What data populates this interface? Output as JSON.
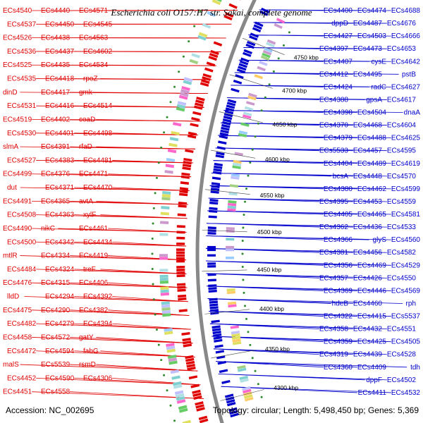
{
  "title": "Escherichia coli O157:H7 str. Sakai, complete genome",
  "accession": "Accession: NC_002695",
  "topology": "Topology: circular; Length: 5,498,450 bp; Genes: 5,369",
  "colors": {
    "forward": "#e00000",
    "reverse": "#0000cc",
    "backbone": "#888888",
    "tick": "#2e8b2e"
  },
  "kbp_ticks": [
    "4750 kbp",
    "4700 kbp",
    "4650 kbp",
    "4600 kbp",
    "4550 kbp",
    "4500 kbp",
    "4450 kbp",
    "4400 kbp",
    "4350 kbp",
    "4300 kbp"
  ],
  "forward_genes": [
    "ECs4540",
    "ECs4537",
    "ECs4526",
    "ECs4536",
    "ECs4525",
    "ECs4535",
    "dinD",
    "ECs4531",
    "ECs4519",
    "ECs4530",
    "slmA",
    "ECs4527",
    "ECs4499",
    "dut",
    "ECs4491",
    "ECs4508",
    "ECs4490",
    "ECs4500",
    "mtlR",
    "ECs4484",
    "ECs4476",
    "lldD",
    "ECs4475",
    "ECs4482",
    "ECs4458",
    "ECs4472",
    "malS",
    "ECs4452",
    "ECs4451",
    "ECs4440",
    "ECs4450",
    "ECs4438",
    "ECs4437",
    "ECs4435",
    "ECs4418",
    "ECs4417",
    "ECs4416",
    "ECs4402",
    "ECs4401",
    "ECs4391",
    "ECs4383",
    "ECs4376",
    "ECs4371",
    "ECs4365",
    "ECs4363",
    "nikC",
    "ECs4342",
    "ECs4334",
    "ECs4324",
    "ECs4315",
    "ECs4294",
    "ECs4290",
    "ECs4279",
    "ECs4572",
    "ECs4594",
    "ECs5539",
    "ECs4590",
    "ECs4558",
    "ECs4571",
    "ECs4545",
    "ECs4563",
    "ECs4602",
    "ECs4534",
    "rpoZ",
    "gmk",
    "ECs4514",
    "coaD",
    "ECs4498",
    "rfaD",
    "ECs4481",
    "ECs4471",
    "ECs4470",
    "avtA",
    "xylF",
    "ECs4461",
    "ECs4434",
    "ECs4419",
    "treF",
    "ECs4406",
    "ECs4392",
    "ECs4382",
    "ECs4394",
    "gatY",
    "fabG",
    "rsmD",
    "ECs4306"
  ],
  "reverse_genes": [
    "ECs4688",
    "ECs4676",
    "ECs4666",
    "ECs4653",
    "ECs4642",
    "pstB",
    "ECs4627",
    "ECs4617",
    "dnaA",
    "ECs4604",
    "ECs4625",
    "ECs4595",
    "ECs4619",
    "ECs4570",
    "ECs4599",
    "ECs4559",
    "ECs4581",
    "ECs4533",
    "ECs4560",
    "ECs4582",
    "ECs4529",
    "ECs4550",
    "ECs4569",
    "rph",
    "ECs5537",
    "ECs4551",
    "ECs4505",
    "ECs4528",
    "tdh",
    "ECs4502",
    "ECs4532",
    "ECs4474",
    "ECs4487",
    "ECs4503",
    "ECs4473",
    "cysE",
    "ECs4495",
    "radC",
    "gpsA",
    "ECs4504",
    "ECs4468",
    "ECs4488",
    "ECs4457",
    "ECs4489",
    "ECs4448",
    "ECs4462",
    "ECs4453",
    "ECs4465",
    "ECs4436",
    "glyS",
    "ECs4456",
    "ECs4469",
    "ECs4426",
    "ECs4446",
    "ECs4460",
    "ECs4415",
    "ECs4432",
    "ECs4425",
    "ECs4439",
    "ECs4409",
    "dppF",
    "ECs4411",
    "ECs4400",
    "dppD",
    "ECs4427",
    "ECs4397",
    "ECs4407",
    "ECs4412",
    "ECs4424",
    "ECs4388",
    "ECs4398",
    "ECs4370",
    "ECs4379",
    "ECs5533",
    "ECs4404",
    "bcsA",
    "ECs4380",
    "ECs4395",
    "ECs4405",
    "ECs4362",
    "ECs4366",
    "ECs4381",
    "ECs4356",
    "ECs4357",
    "ECs4369",
    "hdeB",
    "ECs4322",
    "ECs4358",
    "ECs4359",
    "ECs4319",
    "ECs4360"
  ]
}
